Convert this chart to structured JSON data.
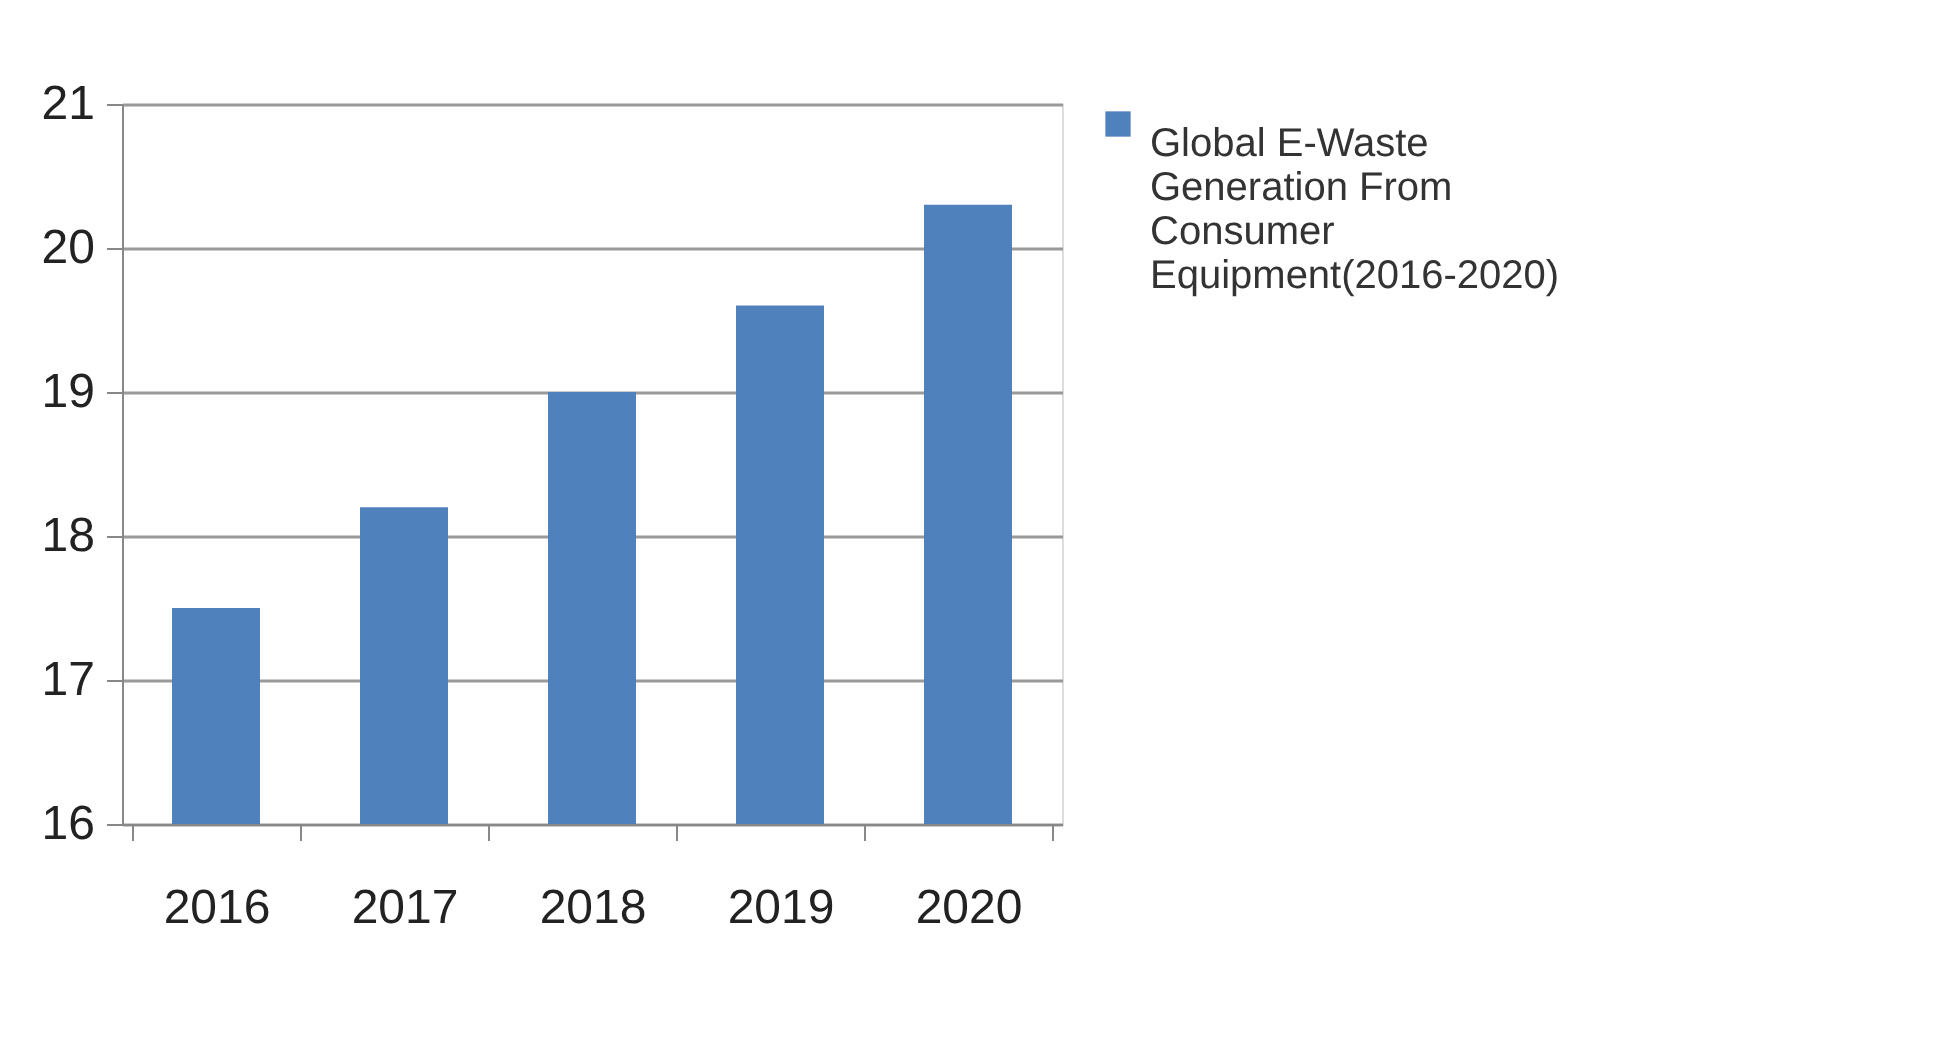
{
  "chart_data": {
    "type": "bar",
    "categories": [
      "2016",
      "2017",
      "2018",
      "2019",
      "2020"
    ],
    "series": [
      {
        "name": "Global E-Waste Generation From Consumer Equipment(2016-2020)",
        "color": "#4f81bd",
        "values": [
          17.5,
          18.2,
          19.0,
          19.6,
          20.3
        ]
      }
    ],
    "ylim": [
      16,
      21
    ],
    "yticks": [
      16,
      17,
      18,
      19,
      20,
      21
    ],
    "grid": "y",
    "legend": "right"
  }
}
